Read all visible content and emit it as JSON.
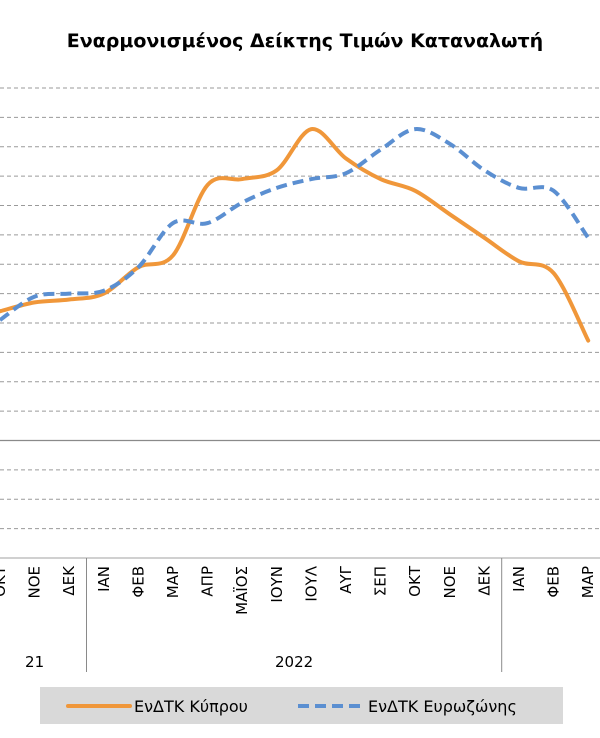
{
  "chart_data": {
    "type": "line",
    "title": "Εναρμονισμένος Δείκτης Τιμών Καταναλωτή",
    "xlabel": "",
    "ylabel": "",
    "grid": true,
    "legend_position": "bottom",
    "categories": [
      "ΟΚΤ",
      "ΝΟΕ",
      "ΔΕΚ",
      "ΙΑΝ",
      "ΦΕΒ",
      "ΜΑΡ",
      "ΑΠΡ",
      "ΜΑΪΟΣ",
      "ΙΟΥΝ",
      "ΙΟΥΛ",
      "ΑΥΓ",
      "ΣΕΠ",
      "ΟΚΤ",
      "ΝΟΕ",
      "ΔΕΚ",
      "ΙΑΝ",
      "ΦΕΒ",
      "ΜΑΡ"
    ],
    "year_groups": [
      {
        "label": "21",
        "start": 0,
        "end": 2
      },
      {
        "label": "2022",
        "start": 3,
        "end": 14
      },
      {
        "label": "",
        "start": 15,
        "end": 17
      }
    ],
    "ylim": [
      -4,
      12
    ],
    "zero_line": 0,
    "series": [
      {
        "name": "ΕνΔΤΚ Κύπρου",
        "color": "#F0973A",
        "dash": "solid",
        "values": [
          4.4,
          4.7,
          4.8,
          5.0,
          5.9,
          6.3,
          8.7,
          8.9,
          9.2,
          10.6,
          9.6,
          8.9,
          8.5,
          7.7,
          6.9,
          6.1,
          5.7,
          3.4
        ]
      },
      {
        "name": "ΕνΔΤΚ Ευρωζώνης",
        "color": "#5B8FD1",
        "dash": "dashed",
        "values": [
          4.1,
          4.9,
          5.0,
          5.1,
          5.9,
          7.4,
          7.4,
          8.1,
          8.6,
          8.9,
          9.1,
          9.9,
          10.6,
          10.1,
          9.2,
          8.6,
          8.5,
          6.9
        ]
      }
    ]
  }
}
